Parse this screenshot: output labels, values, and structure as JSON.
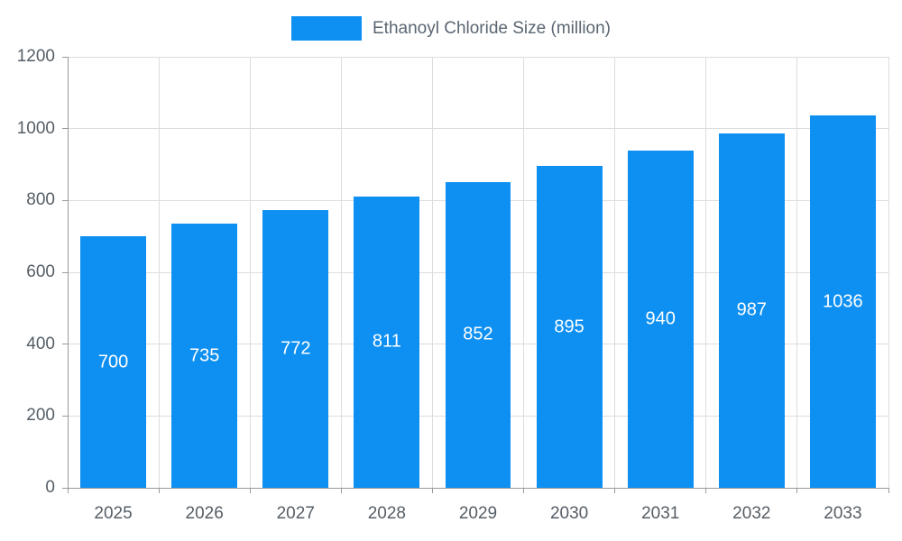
{
  "chart_data": {
    "type": "bar",
    "title": "",
    "legend": {
      "label": "Ethanoyl Chloride Size (million)",
      "position": "top"
    },
    "categories": [
      "2025",
      "2026",
      "2027",
      "2028",
      "2029",
      "2030",
      "2031",
      "2032",
      "2033"
    ],
    "values": [
      700,
      735,
      772,
      811,
      852,
      895,
      940,
      987,
      1036
    ],
    "xlabel": "",
    "ylabel": "",
    "ylim": [
      0,
      1200
    ],
    "yticks": [
      0,
      200,
      400,
      600,
      800,
      1000,
      1200
    ],
    "grid": "on",
    "colors": {
      "bar": "#0e90f2",
      "value_label": "#ffffff",
      "gridline": "#dddddd",
      "axis": "#999999",
      "tick_text": "#555e66"
    }
  }
}
